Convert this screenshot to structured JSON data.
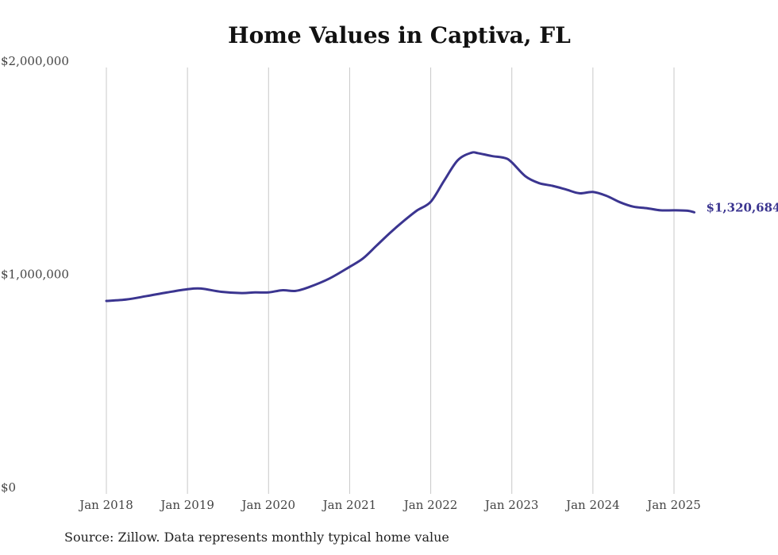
{
  "chart_data": {
    "type": "line",
    "title": "Home Values in Captiva, FL",
    "source": "Source: Zillow. Data represents monthly typical home value",
    "xlabel": "",
    "ylabel": "",
    "ylim": [
      0,
      2000000
    ],
    "y_ticks": [
      {
        "value": 0,
        "label": "$0"
      },
      {
        "value": 1000000,
        "label": "$1,000,000"
      },
      {
        "value": 2000000,
        "label": "$2,000,000"
      }
    ],
    "x_ticks": [
      {
        "value": "2018-01",
        "label": "Jan 2018"
      },
      {
        "value": "2019-01",
        "label": "Jan 2019"
      },
      {
        "value": "2020-01",
        "label": "Jan 2020"
      },
      {
        "value": "2021-01",
        "label": "Jan 2021"
      },
      {
        "value": "2022-01",
        "label": "Jan 2022"
      },
      {
        "value": "2023-01",
        "label": "Jan 2023"
      },
      {
        "value": "2024-01",
        "label": "Jan 2024"
      },
      {
        "value": "2025-01",
        "label": "Jan 2025"
      }
    ],
    "grid": {
      "vertical": true,
      "horizontal": false
    },
    "line_color": "#3b3590",
    "end_label": "$1,320,684",
    "series": [
      {
        "x": [
          "2018-01",
          "2018-04",
          "2018-07",
          "2018-10",
          "2019-01",
          "2019-03",
          "2019-06",
          "2019-09",
          "2019-11",
          "2020-01",
          "2020-03",
          "2020-05",
          "2020-07",
          "2020-10",
          "2021-01",
          "2021-03",
          "2021-05",
          "2021-07",
          "2021-09",
          "2021-11",
          "2022-01",
          "2022-03",
          "2022-05",
          "2022-07",
          "2022-08",
          "2022-10",
          "2022-12",
          "2023-01",
          "2023-03",
          "2023-05",
          "2023-07",
          "2023-09",
          "2023-11",
          "2024-01",
          "2024-03",
          "2024-05",
          "2024-07",
          "2024-09",
          "2024-11",
          "2025-01",
          "2025-03",
          "2025-04"
        ],
        "values": [
          905000,
          912000,
          928000,
          945000,
          960000,
          963000,
          948000,
          942000,
          945000,
          945000,
          955000,
          952000,
          970000,
          1010000,
          1065000,
          1105000,
          1165000,
          1225000,
          1280000,
          1330000,
          1370000,
          1470000,
          1565000,
          1600000,
          1598000,
          1585000,
          1575000,
          1555000,
          1490000,
          1458000,
          1445000,
          1428000,
          1410000,
          1416000,
          1398000,
          1368000,
          1347000,
          1340000,
          1330000,
          1330000,
          1328000,
          1320684
        ]
      }
    ]
  }
}
